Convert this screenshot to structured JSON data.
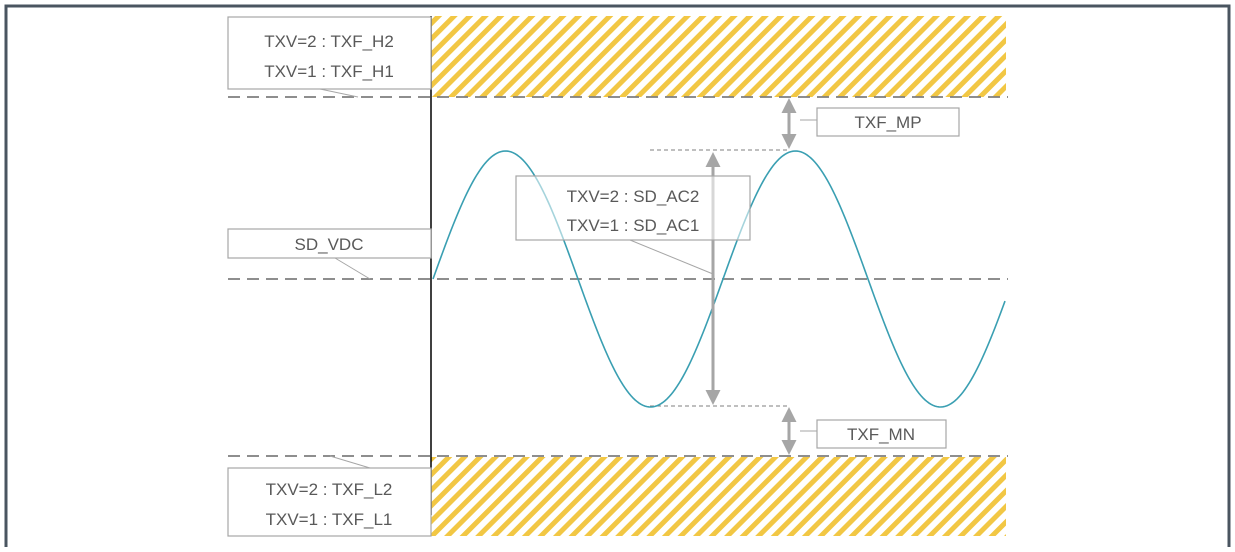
{
  "labels": {
    "high_threshold": {
      "line1": "TXV=2 : TXF_H2",
      "line2": "TXV=1 : TXF_H1"
    },
    "low_threshold": {
      "line1": "TXV=2 : TXF_L2",
      "line2": "TXV=1 : TXF_L1"
    },
    "dc_level": "SD_VDC",
    "ac_amplitude": {
      "line1": "TXV=2 : SD_AC2",
      "line2": "TXV=1 : SD_AC1"
    },
    "margin_positive": "TXF_MP",
    "margin_negative": "TXF_MN"
  },
  "colors": {
    "frame": "#4a5560",
    "hatch": "#f2c744",
    "waveform": "#3a9fb2",
    "dashed_line": "#7f7f7f",
    "arrow": "#a6a6a6",
    "label_border": "#a6a6a6",
    "label_text": "#595959"
  }
}
